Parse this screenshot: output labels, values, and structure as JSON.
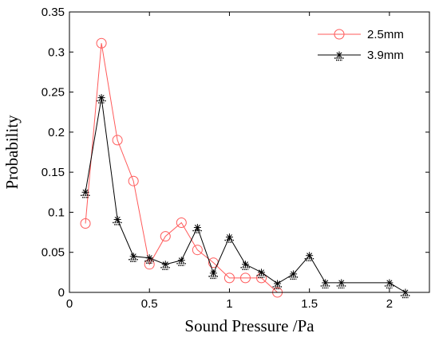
{
  "chart_data": {
    "type": "line",
    "xlabel": "Sound Pressure /Pa",
    "ylabel": "Probability",
    "xlim": [
      0,
      2.25
    ],
    "ylim": [
      0,
      0.35
    ],
    "xticks": [
      "0",
      "0.5",
      "1",
      "1.5",
      "2"
    ],
    "xtick_values": [
      0,
      0.5,
      1,
      1.5,
      2
    ],
    "yticks": [
      "0",
      "0.05",
      "0.1",
      "0.15",
      "0.2",
      "0.25",
      "0.3",
      "0.35"
    ],
    "ytick_values": [
      0,
      0.05,
      0.1,
      0.15,
      0.2,
      0.25,
      0.3,
      0.35
    ],
    "grid": false,
    "legend_position": "top-right",
    "series": [
      {
        "name": "2.5mm",
        "color": "#ff5a5a",
        "marker": "circle",
        "x": [
          0.1,
          0.2,
          0.3,
          0.4,
          0.5,
          0.6,
          0.7,
          0.8,
          0.9,
          1.0,
          1.1,
          1.2,
          1.3
        ],
        "y": [
          0.086,
          0.311,
          0.19,
          0.139,
          0.035,
          0.07,
          0.087,
          0.053,
          0.037,
          0.018,
          0.018,
          0.018,
          0.0
        ]
      },
      {
        "name": "3.9mm",
        "color": "#000000",
        "marker": "star",
        "x": [
          0.1,
          0.2,
          0.3,
          0.4,
          0.5,
          0.6,
          0.7,
          0.8,
          0.9,
          1.0,
          1.1,
          1.2,
          1.3,
          1.4,
          1.5,
          1.6,
          1.7,
          2.0,
          2.1
        ],
        "y": [
          0.125,
          0.243,
          0.091,
          0.045,
          0.043,
          0.035,
          0.04,
          0.081,
          0.024,
          0.069,
          0.035,
          0.025,
          0.011,
          0.023,
          0.046,
          0.012,
          0.012,
          0.012,
          0.0
        ]
      }
    ]
  }
}
